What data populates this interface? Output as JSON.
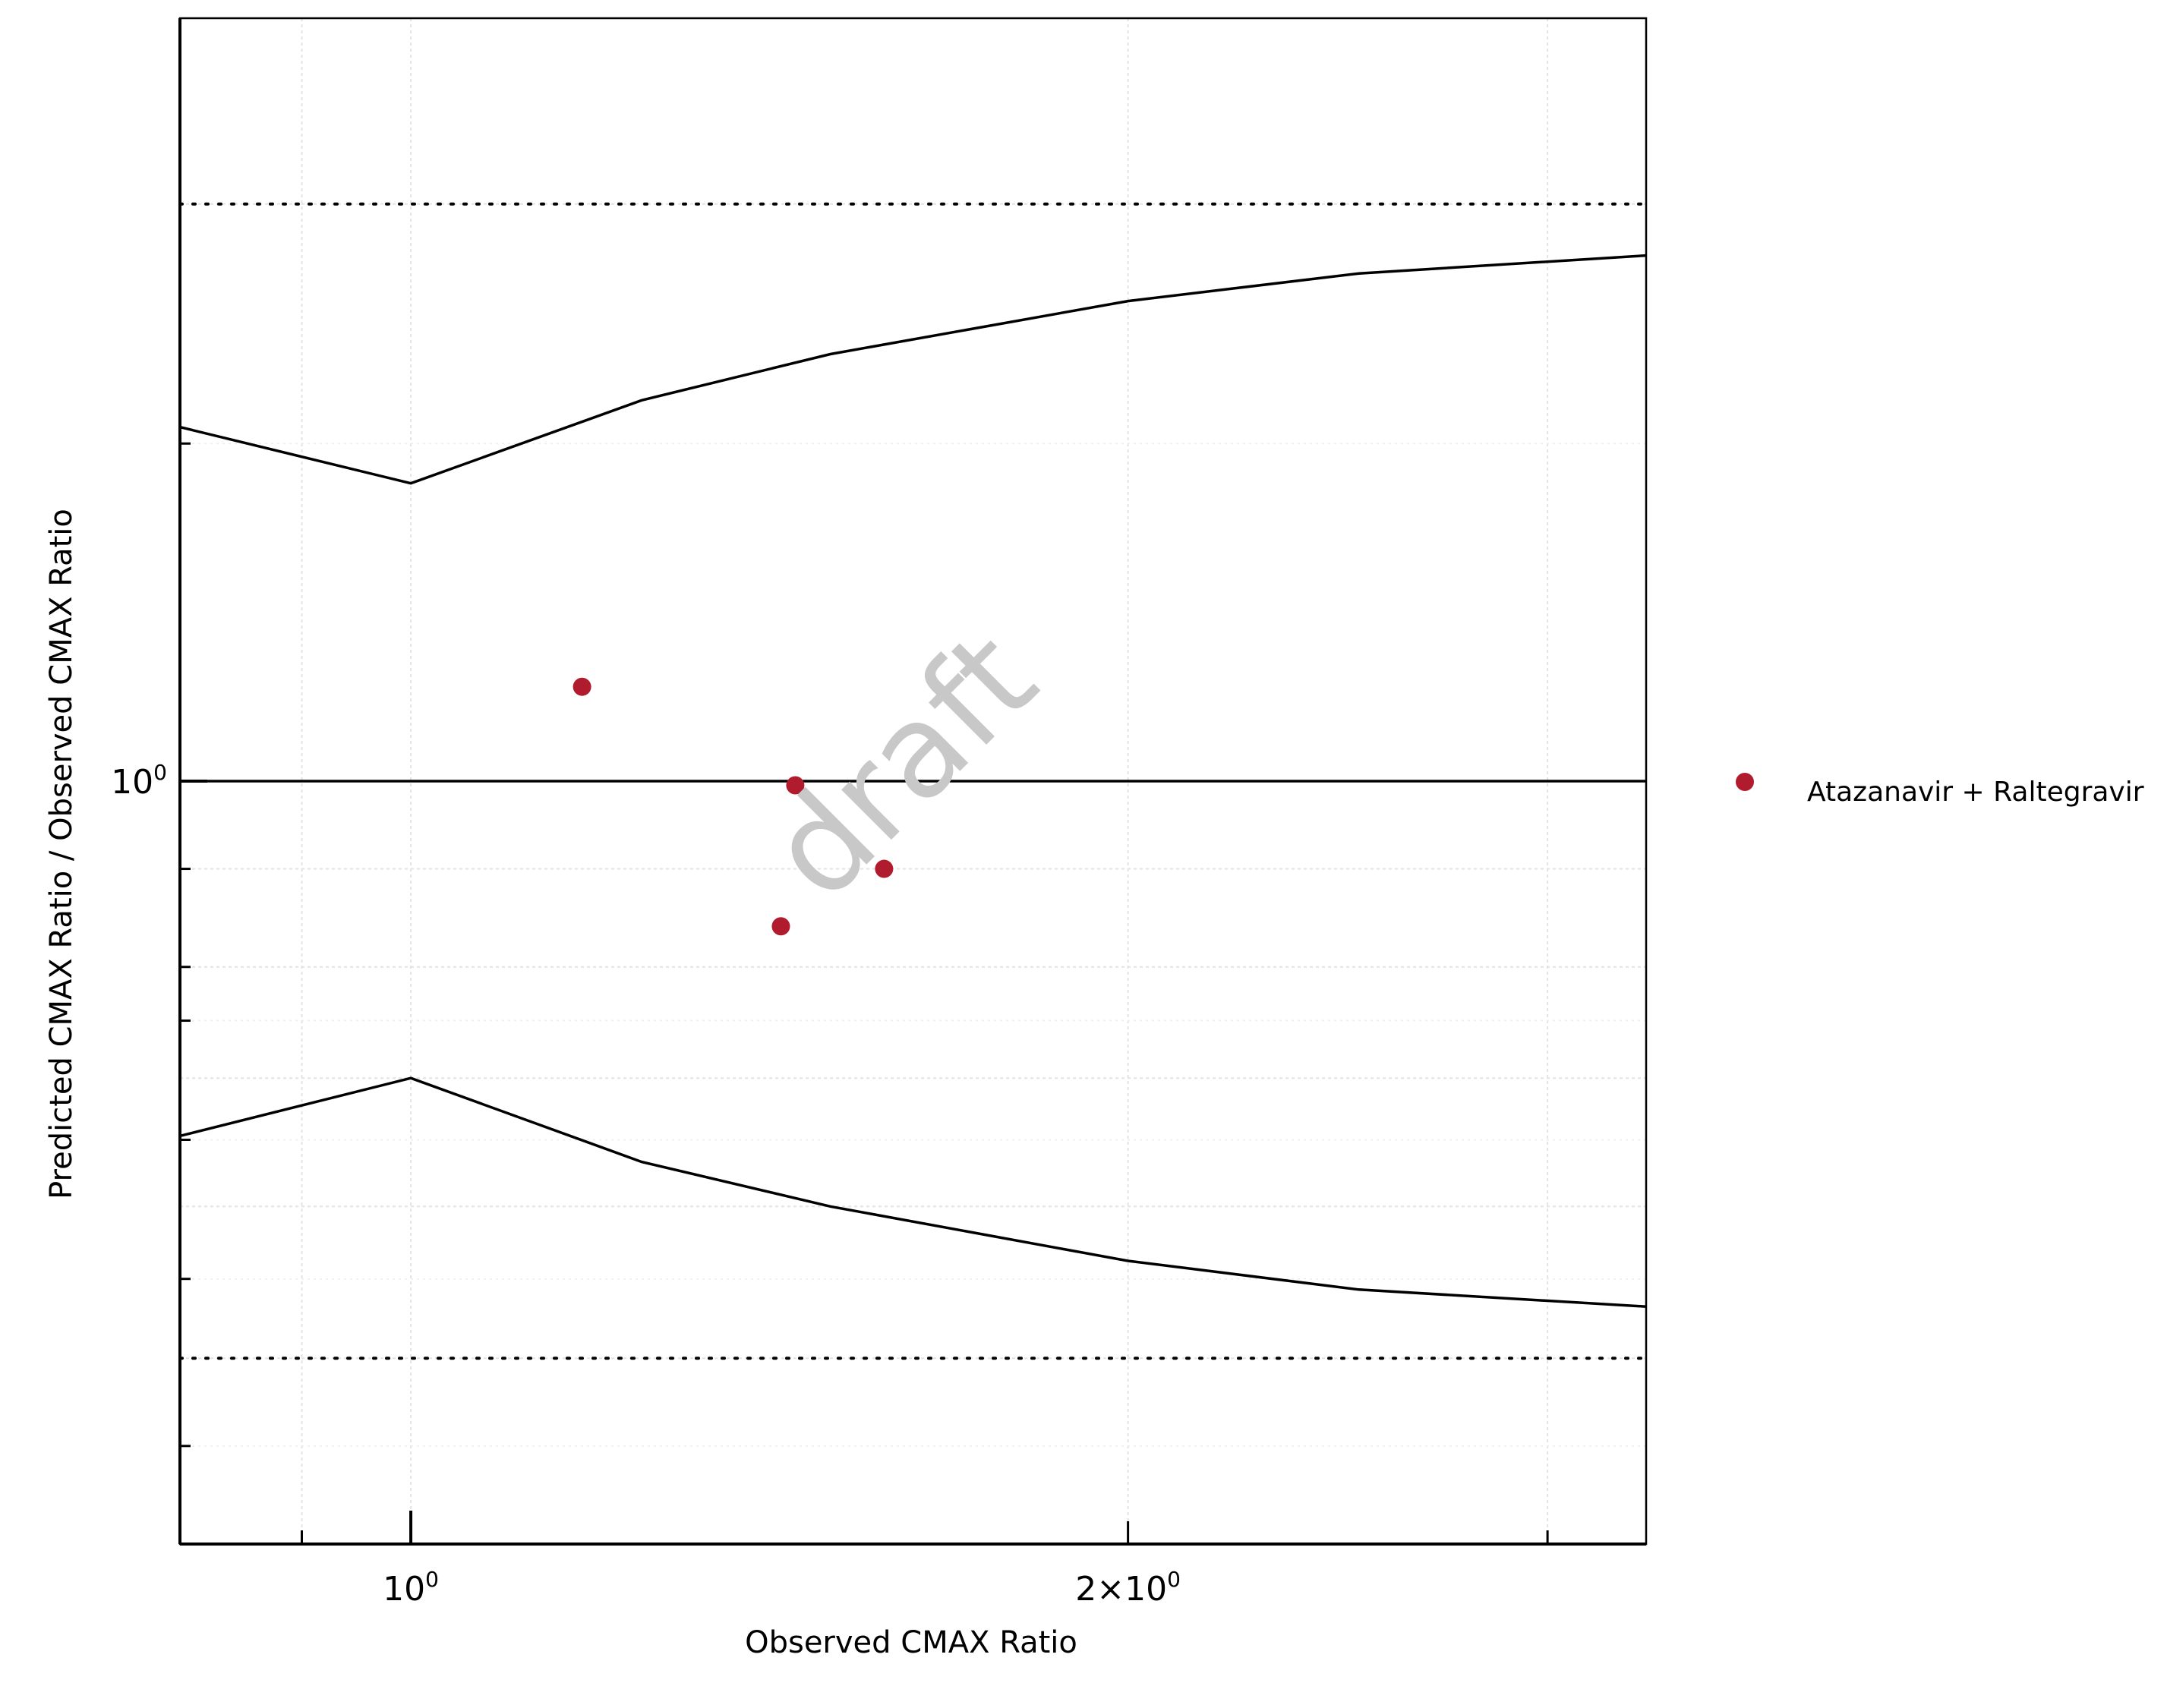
{
  "chart_data": {
    "type": "scatter",
    "xlabel": "Observed CMAX Ratio",
    "ylabel": "Predicted CMAX Ratio / Observed CMAX Ratio",
    "x_scale": "log",
    "y_scale": "log",
    "xlim": [
      0.8,
      3.3
    ],
    "ylim": [
      0.4,
      2.5
    ],
    "x_tick_labels": [
      "10",
      "2×10"
    ],
    "x_tick_exponents": [
      "0",
      "0"
    ],
    "y_tick_labels": [
      "10"
    ],
    "y_tick_exponents": [
      "0"
    ],
    "grid": true,
    "legend_position": "right",
    "watermark": "draft",
    "series": [
      {
        "name": "Atazanavir + Raltegravir",
        "color": "#b01c2e",
        "marker": "circle",
        "x": [
          1.18,
          1.45,
          1.58,
          1.43
        ],
        "y": [
          1.12,
          0.995,
          0.9,
          0.84
        ]
      }
    ],
    "reference_lines": [
      {
        "style": "solid",
        "y": 1.0
      },
      {
        "style": "dotted",
        "y": 2.0
      },
      {
        "style": "dotted",
        "y": 0.5
      }
    ],
    "guest_limits": {
      "style": "solid",
      "x": [
        0.8,
        1.0,
        1.25,
        1.5,
        2.0,
        2.5,
        3.3
      ],
      "upper": [
        1.53,
        1.43,
        1.58,
        1.67,
        1.78,
        1.84,
        1.88
      ],
      "lower": [
        0.653,
        0.7,
        0.633,
        0.6,
        0.562,
        0.543,
        0.532
      ]
    }
  }
}
